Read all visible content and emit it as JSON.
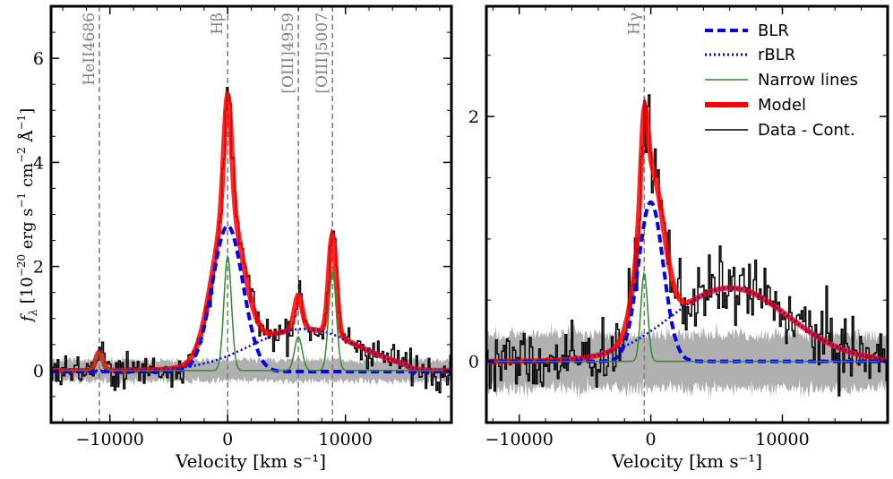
{
  "chart_data": [
    {
      "type": "line",
      "xlabel": "Velocity [km s⁻¹]",
      "ylabel_parts": [
        "f",
        "λ",
        " [10",
        "−20",
        " erg s",
        "−1",
        " cm",
        "−2",
        " Å",
        "−1",
        "]"
      ],
      "xlim": [
        -15000,
        19000
      ],
      "ylim": [
        -1.0,
        7.0
      ],
      "xticks": [
        -10000,
        0,
        10000
      ],
      "xtick_labels": [
        "−10000",
        "0",
        "10000"
      ],
      "yticks": [
        0,
        2,
        4,
        6
      ],
      "ytick_labels": [
        "0",
        "2",
        "4",
        "6"
      ],
      "grid": false,
      "vlines": [
        {
          "x": -10900,
          "label": "HeII4686"
        },
        {
          "x": 0,
          "label": "Hβ"
        },
        {
          "x": 6000,
          "label": "[OIII]4959"
        },
        {
          "x": 8900,
          "label": "[OIII]5007"
        }
      ],
      "components": {
        "continuum_band_halfwidth": 0.2,
        "narrow": [
          {
            "center": -10900,
            "sigma": 300,
            "amp": 0.35
          },
          {
            "center": 0,
            "sigma": 320,
            "amp": 2.2
          },
          {
            "center": 6000,
            "sigma": 320,
            "amp": 0.65
          },
          {
            "center": 8900,
            "sigma": 320,
            "amp": 1.9
          }
        ],
        "blr": {
          "center": 0,
          "sigma": 1300,
          "amp": 2.8,
          "baseline": -0.02
        },
        "rblr": {
          "center": 6500,
          "sigma": 4500,
          "amp": 0.8,
          "cutoff": 15000
        }
      }
    },
    {
      "type": "line",
      "xlabel": "Velocity [km s⁻¹]",
      "xlim": [
        -12500,
        18000
      ],
      "ylim": [
        -0.5,
        2.9
      ],
      "xticks": [
        -10000,
        0,
        10000
      ],
      "xtick_labels": [
        "−10000",
        "0",
        "10000"
      ],
      "yticks": [
        0,
        2
      ],
      "ytick_labels": [
        "0",
        "2"
      ],
      "grid": false,
      "vlines": [
        {
          "x": -500,
          "label": "Hγ"
        }
      ],
      "components": {
        "continuum_band_halfwidth": 0.22,
        "narrow": [
          {
            "center": -500,
            "sigma": 260,
            "amp": 0.72
          }
        ],
        "blr": {
          "center": 0,
          "sigma": 950,
          "amp": 1.3,
          "baseline": 0
        },
        "rblr": {
          "center": 6000,
          "sigma": 4500,
          "amp": 0.6,
          "cutoff": 17000
        }
      }
    }
  ],
  "legend": {
    "placement": "top-right",
    "entries": [
      {
        "label": "BLR",
        "color": "#0000ee",
        "style": "dashed"
      },
      {
        "label": "rBLR",
        "color": "#0000ee",
        "style": "dotted"
      },
      {
        "label": "Narrow lines",
        "color": "#2e8b2e",
        "style": "solid"
      },
      {
        "label": "Model",
        "color": "#ff0000",
        "style": "thick"
      },
      {
        "label": "Data - Cont.",
        "color": "#000000",
        "style": "step"
      }
    ]
  },
  "colors": {
    "blr": "#0000ee",
    "rblr": "#0000ee",
    "narrow": "#2e8b2e",
    "model": "#ff0000",
    "data": "#000000",
    "band": "#b0b0b0",
    "vline": "#808080"
  }
}
